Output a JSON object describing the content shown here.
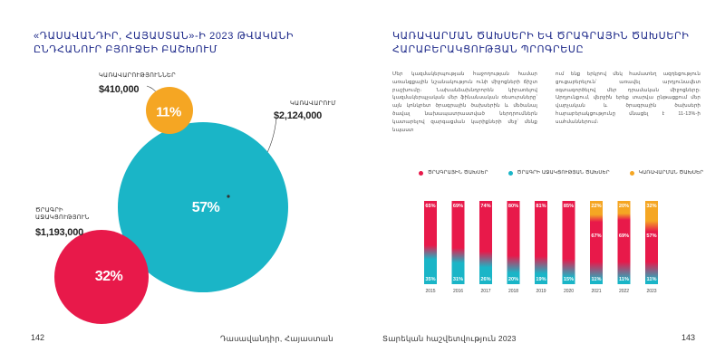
{
  "left": {
    "heading_line1": "«ԴԱՍԱՎԱՆԴԻՐ, ՀԱՅԱՍՏԱՆ»-Ի 2023 ԹՎԱԿԱՆԻ",
    "heading_line2": "ԸՆԴՀԱՆՈՒՐ ԲՅՈՒՋԵԻ ԲԱՇԽՈՒՄ",
    "bubbles": [
      {
        "name": "ԿԱՌԱՎԱՐՈՒՄ",
        "value_label": "$2,124,000",
        "percent_label": "57%",
        "share": 57,
        "color": "#1ab5c7"
      },
      {
        "name": "ԾՐԱԳՐԻ ԱՋԱԿՑՈՒԹՅՈՒՆ",
        "value_label": "$1,193,000",
        "percent_label": "32%",
        "share": 32,
        "color": "#e8194a"
      },
      {
        "name": "ԿԱՌԱՎԱՐՈՒԹՅՈՒՆՆԵՐ",
        "value_label": "$410,000",
        "percent_label": "11%",
        "share": 11,
        "color": "#f5a623"
      }
    ],
    "page_number": "142",
    "footer_title": "Դասավանդիր, Հայաստան"
  },
  "right": {
    "heading_line1": "ԿԱՌԱՎԱՐՄԱՆ ԾԱԽՍԵՐԻ ԵՎ ԾՐԱԳՐԱՅԻՆ ԾԱԽՍԵՐԻ",
    "heading_line2": "ՀԱՐԱԲԵՐԱԿՑՈՒԹՅԱՆ ՊՐՈԳՐԵՍԸ",
    "body_col1": "Մեր կազմակերպության հաջողության համար առանցքային նշանակություն ունի միջոցների ճիշտ բաշխումը։ Նախանձախնդրորեն կիրառելով կազմակերպչական մեր ֆինանսական ռեսուրսները՝ այն կոնկրետ ծրագրային ծախսերին և մեծանալ ծավալ նախապատրաստված ներդրումներն կատարելով զարգացման կարիքների մեջ՝ մենք նպաստ",
    "body_col2": "ում ենք երկրով մեկ համատեղ ազդեցություն ցուցաբերելուն՝ առավել արդյունավետ օգտագործելով մեր դրամական միջոցները։ Արդյունքում, վերջին երեք տարվա ընթացքում մեր վարչական և ծրագրային ծախսերի հարաբերակցությունը մնացել է 11-13%-ի սահմաններում։",
    "page_number": "143",
    "footer_title": "Տարեկան հաշվետվություն 2023"
  },
  "colors": {
    "programs": "#e8194a",
    "support": "#1ab5c7",
    "admin": "#f5a623",
    "heading": "#1e2a8a"
  },
  "chart_data": {
    "type": "bar",
    "stacked": true,
    "categories": [
      "2015",
      "2016",
      "2017",
      "2018",
      "2019",
      "2020",
      "2021",
      "2022",
      "2023"
    ],
    "series": [
      {
        "name": "ԾՐԱԳՐԱՅԻՆ ԾԱԽՍԵՐ",
        "color": "#e8194a",
        "values": [
          65,
          69,
          74,
          80,
          81,
          85,
          67,
          69,
          57
        ],
        "labels": [
          "65%",
          "69%",
          "74%",
          "80%",
          "81%",
          "85%",
          "67%",
          "69%",
          "57%"
        ]
      },
      {
        "name": "ԾՐԱԳՐԻ ԱՋԱԿՑՈՒԹՅԱՆ ԾԱԽՍԵՐ",
        "color": "#1ab5c7",
        "values": [
          35,
          31,
          26,
          20,
          19,
          15,
          11,
          11,
          11
        ],
        "labels": [
          "35%",
          "31%",
          "26%",
          "20%",
          "19%",
          "15%",
          "11%",
          "11%",
          "11%"
        ]
      },
      {
        "name": "ԿԱՌԱՎԱՐՄԱՆ ԾԱԽՍԵՐ",
        "color": "#f5a623",
        "values": [
          0,
          0,
          0,
          0,
          0,
          0,
          22,
          20,
          32
        ],
        "labels": [
          "",
          "",
          "",
          "",
          "",
          "",
          "22%",
          "20%",
          "32%"
        ]
      }
    ],
    "ylim": [
      0,
      100
    ],
    "legend_position": "top"
  }
}
